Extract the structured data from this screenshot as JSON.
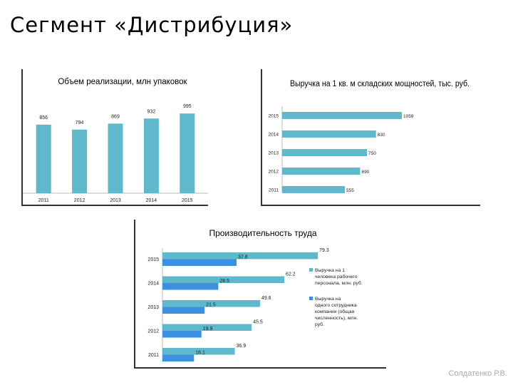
{
  "slide": {
    "title": "Сегмент «Дистрибуция»",
    "author": "Солдатенко Р.В."
  },
  "colors": {
    "teal": "#5fb8cc",
    "blue": "#3d8fe0",
    "axis": "#333333",
    "text": "#222222"
  },
  "chart_data": [
    {
      "type": "bar",
      "title": "Объем реализации, млн упаковок",
      "categories": [
        "2011",
        "2012",
        "2013",
        "2014",
        "2015"
      ],
      "values": [
        856,
        794,
        869,
        932,
        995
      ],
      "ylim": [
        0,
        1050
      ],
      "color": "#5fb8cc",
      "grid": false,
      "legend": "none"
    },
    {
      "type": "bar",
      "orientation": "horizontal",
      "title": "Выручка на 1 кв. м складских мощностей, тыс. руб.",
      "categories": [
        "2015",
        "2014",
        "2013",
        "2012",
        "2011"
      ],
      "values": [
        1059,
        830,
        750,
        690,
        555
      ],
      "xlim": [
        0,
        1059
      ],
      "color": "#5fb8cc",
      "grid": false,
      "legend": "none"
    },
    {
      "type": "bar",
      "orientation": "horizontal",
      "title": "Производительность труда",
      "categories": [
        "2015",
        "2014",
        "2013",
        "2012",
        "2011"
      ],
      "series": [
        {
          "name": "Выручка на 1 человека рабочего персонала, млн. руб.",
          "values": [
            79.3,
            62.2,
            49.8,
            45.5,
            36.9
          ],
          "color": "#5fb8cc"
        },
        {
          "name": "Выручка на одного сотрудника компании (общая численность), млн. руб.",
          "values": [
            37.8,
            28.5,
            21.5,
            19.9,
            16.1
          ],
          "color": "#3d8fe0"
        }
      ],
      "xlim": [
        0,
        85
      ],
      "grid": false,
      "legend": "right"
    }
  ]
}
